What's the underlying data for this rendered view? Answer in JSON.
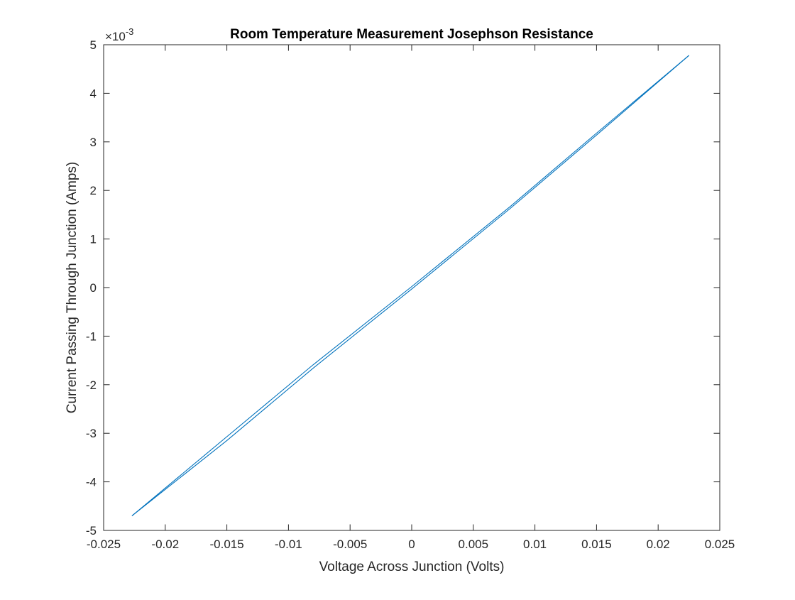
{
  "chart_data": {
    "type": "line",
    "title": "Room Temperature Measurement Josephson Resistance",
    "xlabel": "Voltage Across Junction (Volts)",
    "ylabel": "Current Passing Through Junction (Amps)",
    "xlim": [
      -0.025,
      0.025
    ],
    "ylim": [
      -0.005,
      0.005
    ],
    "x_ticks": [
      -0.025,
      -0.02,
      -0.015,
      -0.01,
      -0.005,
      0,
      0.005,
      0.01,
      0.015,
      0.02,
      0.025
    ],
    "x_tick_labels": [
      "-0.025",
      "-0.02",
      "-0.015",
      "-0.01",
      "-0.005",
      "0",
      "0.005",
      "0.01",
      "0.015",
      "0.02",
      "0.025"
    ],
    "y_ticks": [
      -0.005,
      -0.004,
      -0.003,
      -0.002,
      -0.001,
      0,
      0.001,
      0.002,
      0.003,
      0.004,
      0.005
    ],
    "y_tick_labels": [
      "-5",
      "-4",
      "-3",
      "-2",
      "-1",
      "0",
      "1",
      "2",
      "3",
      "4",
      "5"
    ],
    "y_exponent": {
      "base": "×10",
      "power": "-3"
    },
    "grid": false,
    "color": "#0072BD",
    "series": [
      {
        "x": [
          -0.0227,
          -0.015,
          -0.008,
          0.0,
          0.008,
          0.015,
          0.0225
        ],
        "y": [
          -0.0047,
          -0.00307,
          -0.00159,
          2e-05,
          0.00167,
          0.00318,
          0.00478
        ]
      },
      {
        "x": [
          0.0225,
          0.015,
          0.008,
          0.0,
          -0.008,
          -0.015,
          -0.0227
        ],
        "y": [
          0.00478,
          0.00314,
          0.00163,
          -3e-05,
          -0.00166,
          -0.00315,
          -0.0047
        ]
      }
    ]
  }
}
